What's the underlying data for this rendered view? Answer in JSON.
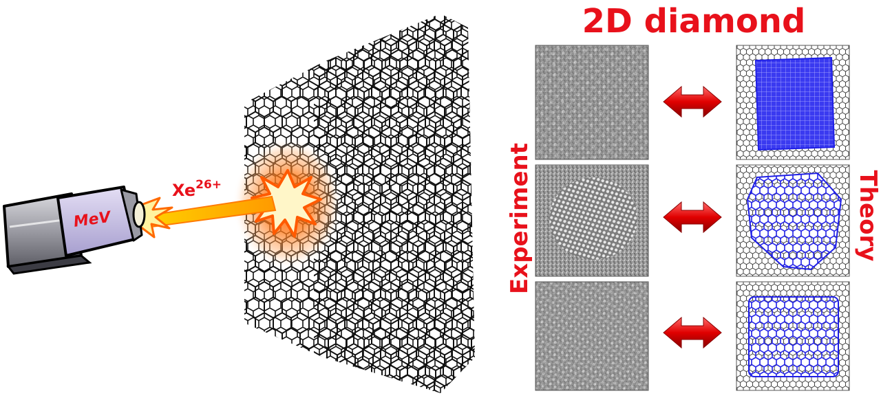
{
  "title": "2D diamond",
  "beam": {
    "device_label": "MeV",
    "ion_label": "Xe",
    "ion_charge": "26+"
  },
  "side_labels": {
    "left": "Experiment",
    "right": "Theory"
  },
  "panels": [
    {
      "experiment": "square-lattice-tem",
      "theory": "square-cluster-model"
    },
    {
      "experiment": "hexagonal-lattice-tem",
      "theory": "hexagonal-cluster-model"
    },
    {
      "experiment": "fine-lattice-tem",
      "theory": "rectangular-cluster-model"
    }
  ],
  "colors": {
    "accent_red": "#e8111b",
    "cluster_blue": "#1f1fe6",
    "lattice_black": "#111111",
    "beam_orange": "#ff8a00",
    "beam_yellow": "#fff3a0",
    "device_purple": "#c9c2e6",
    "device_gray": "#8e8e96"
  },
  "icons": [
    "ion-gun-icon",
    "graphene-lattice-icon",
    "impact-flash-icon",
    "double-arrow-icon"
  ]
}
